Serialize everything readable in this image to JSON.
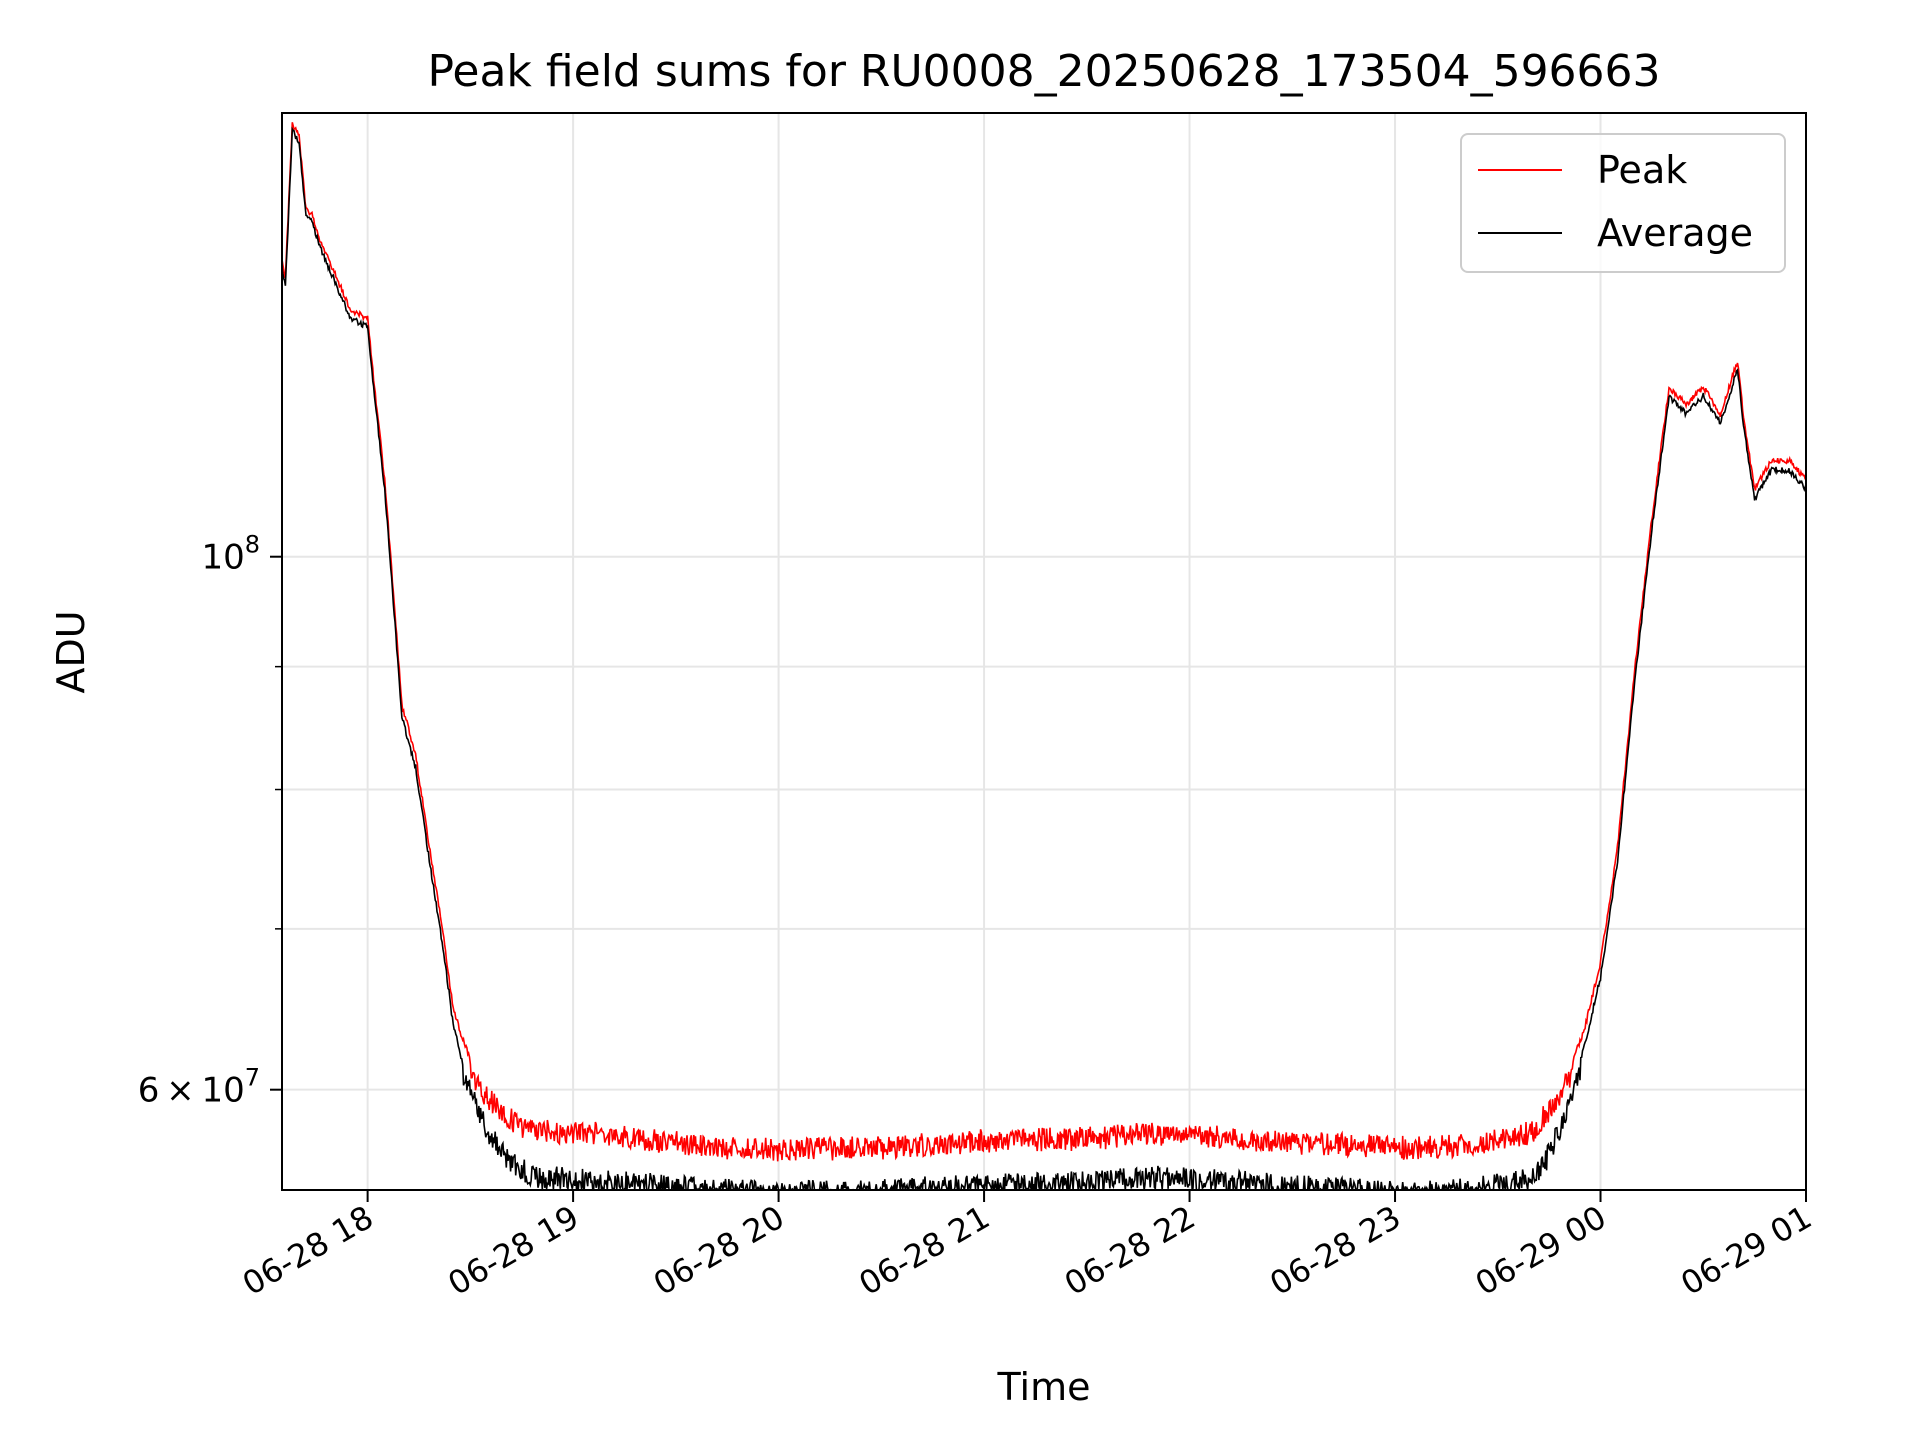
{
  "chart_data": {
    "type": "line",
    "title": "Peak field sums for RU0008_20250628_173504_596663",
    "xlabel": "Time",
    "ylabel": "ADU",
    "y_scale": "log",
    "ylim": [
      54500000,
      153000000
    ],
    "xlim": [
      "06-28 17:35",
      "06-29 01:00"
    ],
    "grid": true,
    "legend_position": "top-right",
    "x_ticks": [
      "06-28 18",
      "06-28 19",
      "06-28 20",
      "06-28 21",
      "06-28 22",
      "06-28 23",
      "06-29 00",
      "06-29 01"
    ],
    "y_major_ticks": [
      {
        "value": 100000000,
        "base": "10",
        "exp": "8"
      },
      {
        "value": 60000000,
        "mantissa": "6",
        "base": "10",
        "exp": "7"
      }
    ],
    "y_minor_ticks": [
      70000000,
      80000000,
      90000000
    ],
    "x": [
      "17:35",
      "17:36",
      "17:38",
      "17:40",
      "17:42",
      "17:44",
      "17:46",
      "17:50",
      "17:55",
      "18:00",
      "18:02",
      "18:05",
      "18:08",
      "18:10",
      "18:14",
      "18:18",
      "18:22",
      "18:25",
      "18:28",
      "18:32",
      "18:36",
      "18:40",
      "18:45",
      "18:50",
      "19:00",
      "19:15",
      "19:30",
      "19:45",
      "20:00",
      "20:30",
      "21:00",
      "21:30",
      "21:50",
      "22:10",
      "22:30",
      "23:00",
      "23:20",
      "23:35",
      "23:40",
      "23:45",
      "23:50",
      "23:55",
      "00:00",
      "00:05",
      "00:10",
      "00:15",
      "00:20",
      "00:25",
      "00:30",
      "00:35",
      "00:40",
      "00:42",
      "00:45",
      "00:50",
      "00:55",
      "01:00"
    ],
    "series": [
      {
        "name": "Peak",
        "color": "#ff0000",
        "values": [
          133000000,
          131000000,
          152000000,
          150000000,
          140000000,
          139000000,
          136000000,
          132000000,
          127000000,
          126000000,
          118000000,
          108000000,
          95000000,
          87000000,
          83000000,
          76000000,
          70000000,
          65000000,
          63000000,
          61000000,
          60000000,
          59200000,
          58600000,
          58300000,
          58300000,
          58000000,
          57700000,
          57400000,
          57300000,
          57400000,
          57800000,
          57900000,
          58200000,
          58000000,
          57700000,
          57400000,
          57500000,
          58000000,
          58300000,
          59500000,
          61000000,
          63500000,
          68000000,
          76000000,
          90000000,
          104000000,
          118000000,
          116000000,
          118000000,
          115000000,
          121000000,
          114000000,
          107000000,
          110000000,
          110000000,
          108000000
        ]
      },
      {
        "name": "Average",
        "color": "#000000",
        "values": [
          132000000,
          130000000,
          151000000,
          149000000,
          139000000,
          138000000,
          135000000,
          131000000,
          126000000,
          125000000,
          117000000,
          107000000,
          94000000,
          86000000,
          82000000,
          75000000,
          69000000,
          64000000,
          61500000,
          59500000,
          58000000,
          57000000,
          56200000,
          55800000,
          55700000,
          55500000,
          55300000,
          55100000,
          55000000,
          55100000,
          55400000,
          55500000,
          55800000,
          55600000,
          55300000,
          55000000,
          55100000,
          55500000,
          55700000,
          57000000,
          59500000,
          62500000,
          67000000,
          75000000,
          89000000,
          103000000,
          117000000,
          115000000,
          117000000,
          114000000,
          120000000,
          113000000,
          106000000,
          109000000,
          109000000,
          107000000
        ]
      }
    ]
  }
}
